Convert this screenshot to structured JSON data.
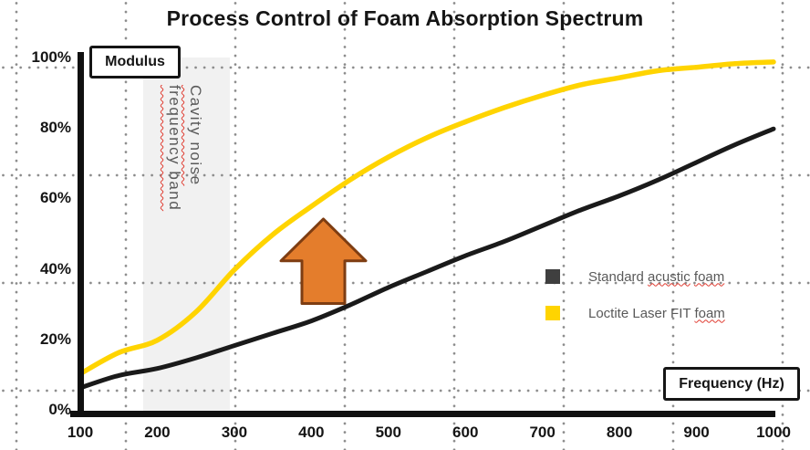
{
  "title": "Process Control of Foam Absorption Spectrum",
  "y_axis_box_label": "Modulus",
  "x_axis_box_label": "Frequency (Hz)",
  "colors": {
    "black_series": "#1A1A1A",
    "yellow_series": "#FFD400",
    "legend_black_swatch": "#3F3F3F",
    "legend_text": "#595959",
    "band_fill": "#F1F1F1",
    "arrow_fill": "#E47D2C",
    "arrow_outline": "#7E3D12",
    "grid_dot": "#8A8A8A",
    "misspell_underline": "#E03C31"
  },
  "legend": {
    "items": [
      {
        "swatch_color": "#3F3F3F",
        "segments": [
          {
            "t": "Standard ",
            "wavy": false
          },
          {
            "t": "acustic",
            "wavy": true
          },
          {
            "t": " ",
            "wavy": false
          },
          {
            "t": "foam",
            "wavy": true
          }
        ]
      },
      {
        "swatch_color": "#FFD400",
        "segments": [
          {
            "t": "Loctite Laser FIT ",
            "wavy": false
          },
          {
            "t": "foam",
            "wavy": true
          }
        ]
      }
    ]
  },
  "band_label_lines": [
    {
      "t": "Cavity noise",
      "wavy": true
    },
    {
      "t": "frequency band",
      "wavy": true
    }
  ],
  "chart_data": {
    "type": "line",
    "title": "Process Control of Foam Absorption Spectrum",
    "xlabel": "Frequency (Hz)",
    "ylabel": "Modulus",
    "xlim": [
      100,
      1000
    ],
    "ylim": [
      0,
      100
    ],
    "grid": "dotted",
    "legend_position": "middle-right",
    "x_ticks": [
      100,
      200,
      300,
      400,
      500,
      600,
      700,
      800,
      900,
      1000
    ],
    "y_tick_values": [
      0,
      20,
      40,
      60,
      80,
      100
    ],
    "y_tick_labels": [
      "0%",
      "20%",
      "40%",
      "60%",
      "80%",
      "100%"
    ],
    "x": [
      100,
      150,
      200,
      250,
      300,
      350,
      400,
      450,
      500,
      550,
      600,
      650,
      700,
      750,
      800,
      850,
      900,
      950,
      1000
    ],
    "series": [
      {
        "name": "Standard acustic foam",
        "color": "#1A1A1A",
        "stroke_width": 5,
        "values": [
          6.5,
          10,
          12,
          15,
          18.5,
          22,
          25.5,
          30,
          35,
          39.5,
          44,
          48,
          52.5,
          57,
          61,
          65.5,
          70.5,
          75.5,
          80
        ]
      },
      {
        "name": "Loctite Laser FIT foam",
        "color": "#FFD400",
        "stroke_width": 5.5,
        "values": [
          10.5,
          16.5,
          20,
          28,
          40,
          50,
          58,
          65.5,
          72,
          77.5,
          82,
          86,
          89.5,
          92.5,
          94.5,
          96.5,
          97.5,
          98.5,
          99
        ]
      }
    ],
    "annotations": {
      "shaded_band": {
        "label": "Cavity noise frequency band",
        "x_from_hz": 182,
        "x_to_hz": 294
      },
      "up_arrow": {
        "center_hz": 415,
        "y_from_pct": 30,
        "y_to_pct": 55
      }
    }
  }
}
